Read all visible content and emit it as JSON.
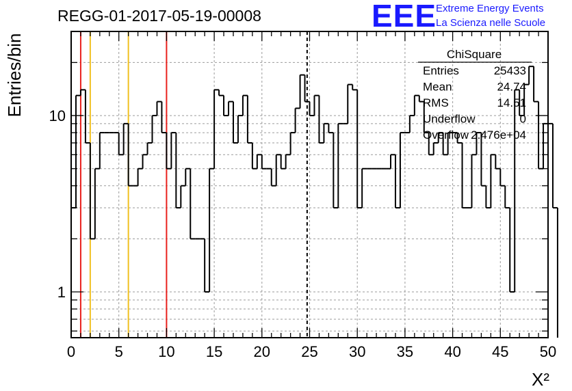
{
  "header": {
    "title": "REGG-01-2017-05-19-00008"
  },
  "logo": {
    "mark": "EEE",
    "line1": "Extreme Energy Events",
    "line2": "La Scienza nelle Scuole"
  },
  "stats": {
    "name": "ChiSquare",
    "rows": [
      {
        "label": "Entries",
        "value": "25433"
      },
      {
        "label": "Mean",
        "value": "24.74"
      },
      {
        "label": "RMS",
        "value": "14.51"
      },
      {
        "label": "Underflow",
        "value": "0"
      },
      {
        "label": "Overflow",
        "value": "2.476e+04"
      }
    ]
  },
  "colors": {
    "histogram": "#000000",
    "red_line": "#e8201c",
    "yellow_line": "#f0c020",
    "mean_line": "#000000",
    "grid": "#9a9a9a",
    "logo": "#1a1aff"
  },
  "chart_data": {
    "type": "histogram",
    "title": "REGG-01-2017-05-19-00008",
    "xlabel": "X²",
    "ylabel": "Entries/bin",
    "xlim": [
      0,
      50
    ],
    "ylim": [
      0.55,
      30
    ],
    "y_scale": "log",
    "grid": true,
    "bin_width": 0.5,
    "x_ticks": [
      "0",
      "5",
      "10",
      "15",
      "20",
      "25",
      "30",
      "35",
      "40",
      "45",
      "50"
    ],
    "y_ticks": [
      {
        "value": 1,
        "label": "1"
      },
      {
        "value": 10,
        "label": "10"
      }
    ],
    "values": [
      3,
      13,
      14,
      7,
      2,
      5,
      8,
      8,
      8,
      8,
      6,
      9,
      4,
      4,
      5,
      6,
      7,
      10,
      12,
      8,
      5,
      8,
      3,
      4,
      5,
      2,
      2,
      2,
      1,
      5,
      14,
      13,
      10,
      12,
      7,
      10,
      13,
      7,
      5,
      6,
      5,
      5,
      4,
      6,
      5,
      6,
      8,
      11,
      17,
      12,
      10,
      13,
      7,
      9,
      8,
      3,
      9,
      9,
      15,
      14,
      3,
      5,
      5,
      5,
      5,
      5,
      5,
      6,
      3,
      8,
      8,
      10,
      13,
      12,
      8,
      6,
      7,
      8,
      6,
      8,
      8,
      7,
      3,
      3,
      6,
      8,
      4,
      3,
      6,
      5,
      4,
      3,
      1,
      14,
      10,
      15,
      19,
      12,
      5,
      9,
      9,
      3
    ],
    "vertical_lines": [
      {
        "x": 1,
        "color": "#e8201c",
        "style": "solid"
      },
      {
        "x": 2,
        "color": "#f0c020",
        "style": "solid"
      },
      {
        "x": 6,
        "color": "#f0c020",
        "style": "solid"
      },
      {
        "x": 10,
        "color": "#e8201c",
        "style": "solid"
      },
      {
        "x": 24.74,
        "color": "#000000",
        "style": "dashed"
      }
    ]
  }
}
